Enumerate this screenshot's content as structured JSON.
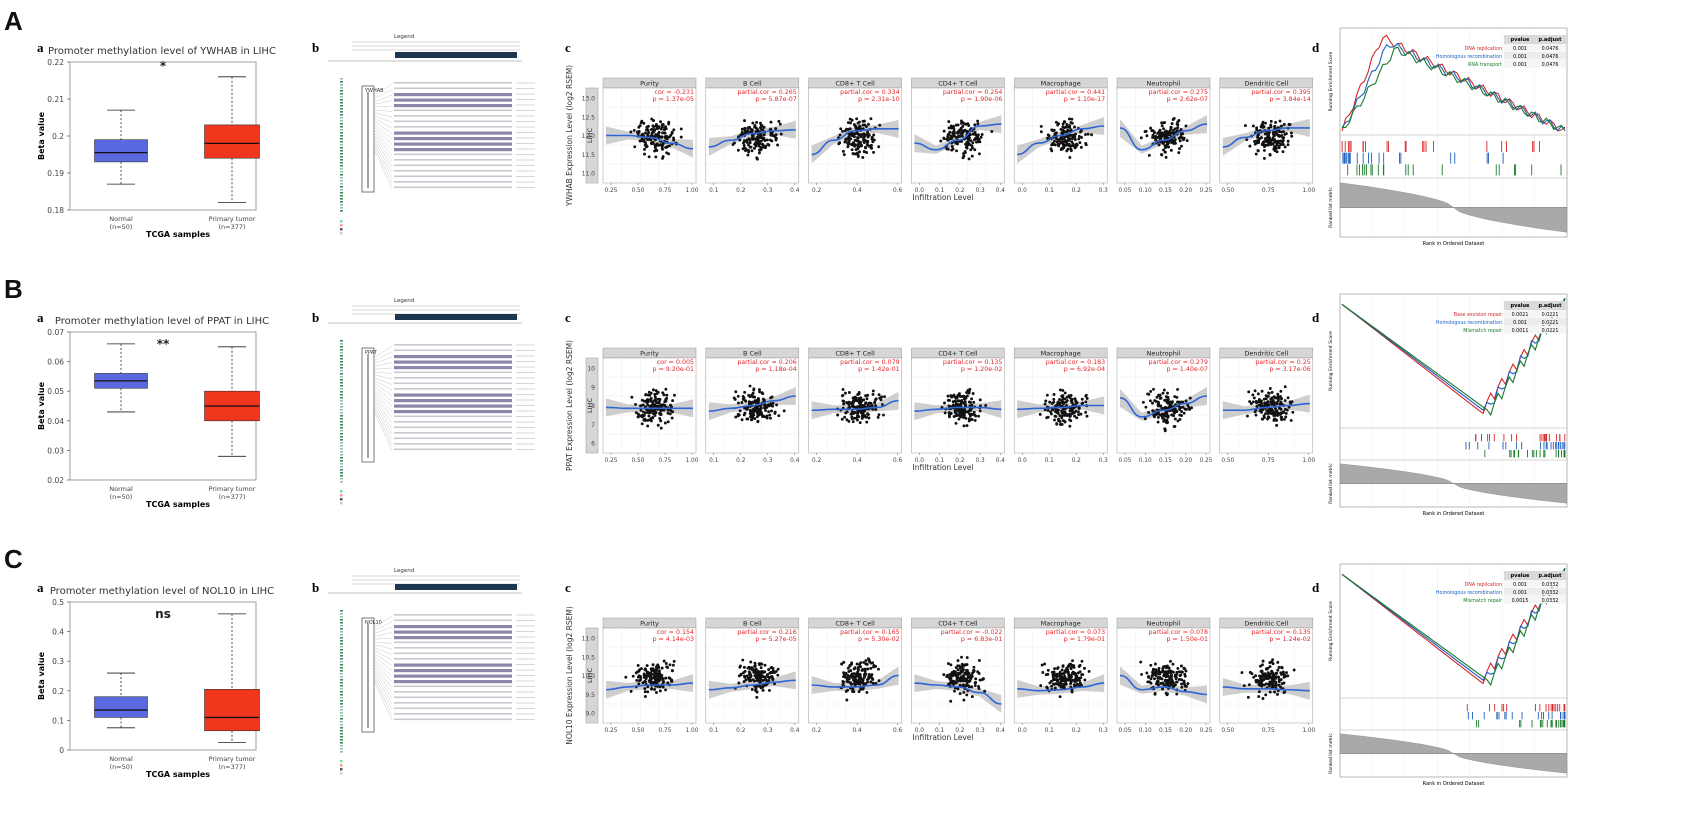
{
  "panels": [
    {
      "letter": "A",
      "box": {
        "sub": "a",
        "title": "Promoter methylation level of YWHAB in LIHC",
        "sig": "*",
        "ylabel": "Beta value",
        "xlabel": "TCGA samples",
        "yticks": [
          "0.22",
          "0.21",
          "0.2",
          "0.19",
          "0.18"
        ],
        "ymin": 0.18,
        "ymax": 0.22,
        "groups": [
          {
            "name": "Normal",
            "n": "(n=50)",
            "color": "#5a69e0",
            "min": 0.187,
            "q1": 0.193,
            "median": 0.1955,
            "q3": 0.199,
            "max": 0.207
          },
          {
            "name": "Primary tumor",
            "n": "(n=377)",
            "color": "#f0361c",
            "min": 0.182,
            "q1": 0.194,
            "median": 0.198,
            "q3": 0.203,
            "max": 0.216
          }
        ]
      },
      "cbio": {
        "sub": "b",
        "legend": "Legend",
        "gene": "YWHAB"
      },
      "timer": {
        "sub": "c",
        "ylabel": "YWHAB Expression Level (log2 RSEM)",
        "side": "LIHC",
        "yticks": [
          "13.0",
          "12.5",
          "12.0",
          "11.5",
          "11.0"
        ],
        "xlabel": "Infiltration Level",
        "facets": [
          {
            "name": "Purity",
            "line1": "cor = -0.231",
            "line2": "p = 1.37e-05",
            "ticks": [
              "0.25",
              "0.50",
              "0.75",
              "1.00"
            ],
            "trend": [
              0.5,
              0.5,
              0.48,
              0.42,
              0.36
            ]
          },
          {
            "name": "B Cell",
            "line1": "partial.cor = 0.265",
            "line2": "p = 5.87e-07",
            "ticks": [
              "0.1",
              "0.2",
              "0.3",
              "0.4"
            ],
            "trend": [
              0.38,
              0.45,
              0.52,
              0.55,
              0.56
            ]
          },
          {
            "name": "CD8+ T Cell",
            "line1": "partial.cor = 0.334",
            "line2": "p = 2.31e-10",
            "ticks": [
              "0.2",
              "0.4",
              "0.6"
            ],
            "trend": [
              0.3,
              0.45,
              0.55,
              0.57,
              0.57
            ]
          },
          {
            "name": "CD4+ T Cell",
            "line1": "partial.cor = 0.254",
            "line2": "p = 1.90e-06",
            "ticks": [
              "0.0",
              "0.1",
              "0.2",
              "0.3",
              "0.4"
            ],
            "trend": [
              0.42,
              0.35,
              0.45,
              0.6,
              0.62
            ]
          },
          {
            "name": "Macrophage",
            "line1": "partial.cor = 0.441",
            "line2": "p = 1.10e-17",
            "ticks": [
              "0.0",
              "0.1",
              "0.2",
              "0.3"
            ],
            "trend": [
              0.3,
              0.42,
              0.5,
              0.57,
              0.6
            ]
          },
          {
            "name": "Neutrophil",
            "line1": "partial.cor = 0.275",
            "line2": "p = 2.62e-07",
            "ticks": [
              "0.05",
              "0.10",
              "0.15",
              "0.20",
              "0.25"
            ],
            "trend": [
              0.58,
              0.35,
              0.45,
              0.55,
              0.62
            ]
          },
          {
            "name": "Dendritic Cell",
            "line1": "partial.cor = 0.395",
            "line2": "p = 3.84e-14",
            "ticks": [
              "0.50",
              "0.75",
              "1.00"
            ],
            "trend": [
              0.38,
              0.48,
              0.55,
              0.58,
              0.58
            ]
          }
        ]
      },
      "gsea": {
        "sub": "d",
        "ylabel": "Running Enrichment Score",
        "ylabel2": "Ranked list metric",
        "xlabel": "Rank in Ordered Dataset",
        "table_head": [
          "pvalue",
          "p.adjust"
        ],
        "rows": [
          {
            "name": "DNA replication",
            "color": "#d62728",
            "pvalue": "0.001",
            "padj": "0.0476"
          },
          {
            "name": "Homologous recombination",
            "color": "#1f5fbf",
            "pvalue": "0.001",
            "padj": "0.0476"
          },
          {
            "name": "RNA transport",
            "color": "#1a7a2a",
            "pvalue": "0.001",
            "padj": "0.0476"
          }
        ],
        "mode": "early"
      }
    },
    {
      "letter": "B",
      "box": {
        "sub": "a",
        "title": "Promoter methylation level of PPAT in LIHC",
        "sig": "**",
        "ylabel": "Beta value",
        "xlabel": "TCGA samples",
        "yticks": [
          "0.07",
          "0.06",
          "0.05",
          "0.04",
          "0.03",
          "0.02"
        ],
        "ymin": 0.02,
        "ymax": 0.07,
        "groups": [
          {
            "name": "Normal",
            "n": "(n=50)",
            "color": "#5a69e0",
            "min": 0.043,
            "q1": 0.051,
            "median": 0.0535,
            "q3": 0.056,
            "max": 0.066
          },
          {
            "name": "Primary tumor",
            "n": "(n=377)",
            "color": "#f0361c",
            "min": 0.028,
            "q1": 0.04,
            "median": 0.045,
            "q3": 0.05,
            "max": 0.065
          }
        ]
      },
      "cbio": {
        "sub": "b",
        "legend": "Legend",
        "gene": "PPAT"
      },
      "timer": {
        "sub": "c",
        "ylabel": "PPAT Expression Level (log2 RSEM)",
        "side": "LIHC",
        "yticks": [
          "10",
          "9",
          "8",
          "7",
          "6"
        ],
        "xlabel": "Infiltration Level",
        "facets": [
          {
            "name": "Purity",
            "line1": "cor = 0.005",
            "line2": "p = 9.20e-01",
            "ticks": [
              "0.25",
              "0.50",
              "0.75",
              "1.00"
            ],
            "trend": [
              0.48,
              0.47,
              0.47,
              0.47,
              0.47
            ]
          },
          {
            "name": "B Cell",
            "line1": "partial.cor = 0.206",
            "line2": "p = 1.18e-04",
            "ticks": [
              "0.1",
              "0.2",
              "0.3",
              "0.4"
            ],
            "trend": [
              0.44,
              0.47,
              0.5,
              0.55,
              0.6
            ]
          },
          {
            "name": "CD8+ T Cell",
            "line1": "partial.cor = 0.079",
            "line2": "p = 1.42e-01",
            "ticks": [
              "0.2",
              "0.4",
              "0.6"
            ],
            "trend": [
              0.45,
              0.46,
              0.46,
              0.48,
              0.55
            ]
          },
          {
            "name": "CD4+ T Cell",
            "line1": "partial.cor = 0.135",
            "line2": "p = 1.20e-02",
            "ticks": [
              "0.0",
              "0.1",
              "0.2",
              "0.3",
              "0.4"
            ],
            "trend": [
              0.44,
              0.46,
              0.48,
              0.48,
              0.46
            ]
          },
          {
            "name": "Macrophage",
            "line1": "partial.cor = 0.183",
            "line2": "p = 6.92e-04",
            "ticks": [
              "0.0",
              "0.1",
              "0.2",
              "0.3"
            ],
            "trend": [
              0.46,
              0.47,
              0.48,
              0.5,
              0.5
            ]
          },
          {
            "name": "Neutrophil",
            "line1": "partial.cor = 0.279",
            "line2": "p = 1.40e-07",
            "ticks": [
              "0.05",
              "0.10",
              "0.15",
              "0.20",
              "0.25"
            ],
            "trend": [
              0.58,
              0.38,
              0.45,
              0.52,
              0.6
            ]
          },
          {
            "name": "Dendritic Cell",
            "line1": "partial.cor = 0.25",
            "line2": "p = 3.17e-06",
            "ticks": [
              "0.50",
              "0.75",
              "1.00"
            ],
            "trend": [
              0.45,
              0.45,
              0.48,
              0.5,
              0.52
            ]
          }
        ]
      },
      "gsea": {
        "sub": "d",
        "ylabel": "Running Enrichment Score",
        "ylabel2": "Ranked list metric",
        "xlabel": "Rank in Ordered Dataset",
        "table_head": [
          "pvalue",
          "p.adjust"
        ],
        "rows": [
          {
            "name": "Base excision repair",
            "color": "#d62728",
            "pvalue": "0.0021",
            "padj": "0.0221"
          },
          {
            "name": "Homologous recombination",
            "color": "#1f5fbf",
            "pvalue": "0.001",
            "padj": "0.0221"
          },
          {
            "name": "Mismatch repair",
            "color": "#1a7a2a",
            "pvalue": "0.0011",
            "padj": "0.0221"
          }
        ],
        "mode": "late"
      }
    },
    {
      "letter": "C",
      "box": {
        "sub": "a",
        "title": "Promoter methylation level of NOL10 in LIHC",
        "sig": "ns",
        "ylabel": "Beta value",
        "xlabel": "TCGA samples",
        "yticks": [
          "0.5",
          "0.4",
          "0.3",
          "0.2",
          "0.1",
          "0"
        ],
        "ymin": 0,
        "ymax": 0.5,
        "groups": [
          {
            "name": "Normal",
            "n": "(n=50)",
            "color": "#5a69e0",
            "min": 0.075,
            "q1": 0.11,
            "median": 0.135,
            "q3": 0.18,
            "max": 0.26
          },
          {
            "name": "Primary tumor",
            "n": "(n=377)",
            "color": "#f0361c",
            "min": 0.025,
            "q1": 0.065,
            "median": 0.11,
            "q3": 0.205,
            "max": 0.46
          }
        ]
      },
      "cbio": {
        "sub": "b",
        "legend": "Legend",
        "gene": "NOL10"
      },
      "timer": {
        "sub": "c",
        "ylabel": "NOL10 Expression Level (log2 RSEM)",
        "side": "LIHC",
        "yticks": [
          "11.0",
          "10.5",
          "10.0",
          "9.5",
          "9.0"
        ],
        "xlabel": "Infiltration Level",
        "facets": [
          {
            "name": "Purity",
            "line1": "cor = 0.154",
            "line2": "p = 4.14e-03",
            "ticks": [
              "0.25",
              "0.50",
              "0.75",
              "1.00"
            ],
            "trend": [
              0.35,
              0.38,
              0.4,
              0.4,
              0.42
            ]
          },
          {
            "name": "B Cell",
            "line1": "partial.cor = 0.216",
            "line2": "p = 5.27e-05",
            "ticks": [
              "0.1",
              "0.2",
              "0.3",
              "0.4"
            ],
            "trend": [
              0.35,
              0.37,
              0.4,
              0.43,
              0.45
            ]
          },
          {
            "name": "CD8+ T Cell",
            "line1": "partial.cor = 0.165",
            "line2": "p = 5.30e-02",
            "ticks": [
              "0.2",
              "0.4",
              "0.6"
            ],
            "trend": [
              0.4,
              0.38,
              0.38,
              0.4,
              0.5
            ]
          },
          {
            "name": "CD4+ T Cell",
            "line1": "partial.cor = -0.022",
            "line2": "p = 6.83e-01",
            "ticks": [
              "0.0",
              "0.1",
              "0.2",
              "0.3",
              "0.4"
            ],
            "trend": [
              0.42,
              0.4,
              0.38,
              0.32,
              0.2
            ]
          },
          {
            "name": "Macrophage",
            "line1": "partial.cor = 0.073",
            "line2": "p = 1.79e-01",
            "ticks": [
              "0.0",
              "0.1",
              "0.2",
              "0.3"
            ],
            "trend": [
              0.36,
              0.34,
              0.35,
              0.38,
              0.42
            ]
          },
          {
            "name": "Neutrophil",
            "line1": "partial.cor = 0.078",
            "line2": "p = 1.50e-01",
            "ticks": [
              "0.05",
              "0.10",
              "0.15",
              "0.20",
              "0.25"
            ],
            "trend": [
              0.5,
              0.35,
              0.38,
              0.33,
              0.3
            ]
          },
          {
            "name": "Dendritic Cell",
            "line1": "partial.cor = 0.135",
            "line2": "p = 1.24e-02",
            "ticks": [
              "0.50",
              "0.75",
              "1.00"
            ],
            "trend": [
              0.38,
              0.36,
              0.36,
              0.35,
              0.34
            ]
          }
        ]
      },
      "gsea": {
        "sub": "d",
        "ylabel": "Running Enrichment Score",
        "ylabel2": "Ranked list metric",
        "xlabel": "Rank in Ordered Dataset",
        "table_head": [
          "pvalue",
          "p.adjust"
        ],
        "rows": [
          {
            "name": "DNA replication",
            "color": "#d62728",
            "pvalue": "0.001",
            "padj": "0.0332"
          },
          {
            "name": "Homologous recombination",
            "color": "#1f5fbf",
            "pvalue": "0.001",
            "padj": "0.0332"
          },
          {
            "name": "Mismatch repair",
            "color": "#1a7a2a",
            "pvalue": "0.0015",
            "padj": "0.0332"
          }
        ],
        "mode": "late"
      }
    }
  ],
  "chart_data": [
    {
      "type": "box",
      "title": "Promoter methylation level of YWHAB in LIHC",
      "xlabel": "TCGA samples",
      "ylabel": "Beta value",
      "ylim": [
        0.18,
        0.22
      ],
      "categories": [
        "Normal",
        "Primary tumor"
      ],
      "series": [
        {
          "values": [
            {
              "min": 0.187,
              "q1": 0.193,
              "median": 0.1955,
              "q3": 0.199,
              "max": 0.207
            },
            {
              "min": 0.182,
              "q1": 0.194,
              "median": 0.198,
              "q3": 0.203,
              "max": 0.216
            }
          ]
        }
      ]
    },
    {
      "type": "box",
      "title": "Promoter methylation level of PPAT in LIHC",
      "xlabel": "TCGA samples",
      "ylabel": "Beta value",
      "ylim": [
        0.02,
        0.07
      ],
      "categories": [
        "Normal",
        "Primary tumor"
      ],
      "series": [
        {
          "values": [
            {
              "min": 0.043,
              "q1": 0.051,
              "median": 0.0535,
              "q3": 0.056,
              "max": 0.066
            },
            {
              "min": 0.028,
              "q1": 0.04,
              "median": 0.045,
              "q3": 0.05,
              "max": 0.065
            }
          ]
        }
      ]
    },
    {
      "type": "box",
      "title": "Promoter methylation level of NOL10 in LIHC",
      "xlabel": "TCGA samples",
      "ylabel": "Beta value",
      "ylim": [
        0,
        0.5
      ],
      "categories": [
        "Normal",
        "Primary tumor"
      ],
      "series": [
        {
          "values": [
            {
              "min": 0.075,
              "q1": 0.11,
              "median": 0.135,
              "q3": 0.18,
              "max": 0.26
            },
            {
              "min": 0.025,
              "q1": 0.065,
              "median": 0.11,
              "q3": 0.205,
              "max": 0.46
            }
          ]
        }
      ]
    },
    {
      "type": "scatter",
      "ylabel": "YWHAB Expression Level (log2 RSEM)",
      "xlabel": "Infiltration Level",
      "categories": [
        "Purity",
        "B Cell",
        "CD8+ T Cell",
        "CD4+ T Cell",
        "Macrophage",
        "Neutrophil",
        "Dendritic Cell"
      ],
      "cor": [
        -0.231,
        0.265,
        0.334,
        0.254,
        0.441,
        0.275,
        0.395
      ]
    },
    {
      "type": "scatter",
      "ylabel": "PPAT Expression Level (log2 RSEM)",
      "xlabel": "Infiltration Level",
      "categories": [
        "Purity",
        "B Cell",
        "CD8+ T Cell",
        "CD4+ T Cell",
        "Macrophage",
        "Neutrophil",
        "Dendritic Cell"
      ],
      "cor": [
        0.005,
        0.206,
        0.079,
        0.135,
        0.183,
        0.279,
        0.25
      ]
    },
    {
      "type": "scatter",
      "ylabel": "NOL10 Expression Level (log2 RSEM)",
      "xlabel": "Infiltration Level",
      "categories": [
        "Purity",
        "B Cell",
        "CD8+ T Cell",
        "CD4+ T Cell",
        "Macrophage",
        "Neutrophil",
        "Dendritic Cell"
      ],
      "cor": [
        0.154,
        0.216,
        0.165,
        -0.022,
        0.073,
        0.078,
        0.135
      ]
    }
  ]
}
